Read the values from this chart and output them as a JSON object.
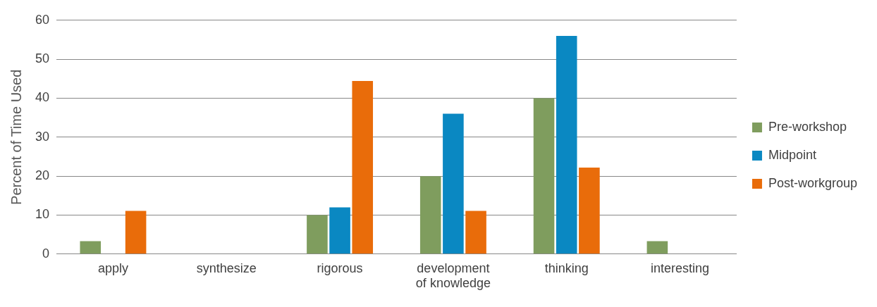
{
  "chart_data": {
    "type": "bar",
    "ylabel": "Percent of Time Used",
    "categories": [
      "apply",
      "synthesize",
      "rigorous",
      "development of knowledge",
      "thinking",
      "interesting"
    ],
    "series": [
      {
        "name": "Pre-workshop",
        "color": "#7f9d5e",
        "values": [
          3.3,
          0,
          10,
          20,
          40,
          3.3
        ]
      },
      {
        "name": "Midpoint",
        "color": "#0a88c2",
        "values": [
          0,
          0,
          12,
          36,
          56,
          0
        ]
      },
      {
        "name": "Post-workgroup",
        "color": "#e96c0a",
        "values": [
          11.1,
          0,
          44.4,
          11.1,
          22.2,
          0
        ]
      }
    ],
    "ylim": [
      0,
      60
    ],
    "yticks": [
      0,
      10,
      20,
      30,
      40,
      50,
      60
    ],
    "grid": "y",
    "legend": "right"
  }
}
